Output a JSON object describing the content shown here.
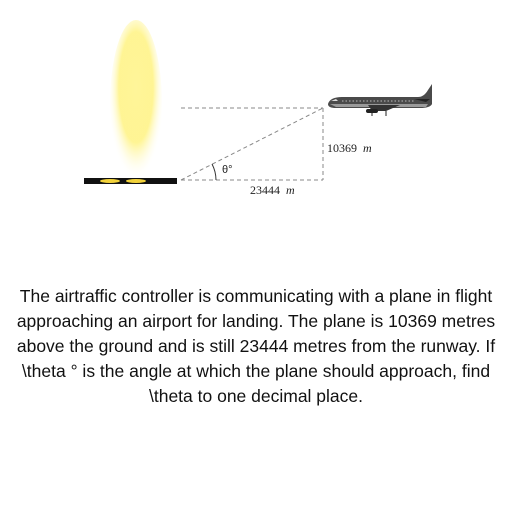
{
  "diagram": {
    "height_label": "10369",
    "distance_label": "23444",
    "unit": "m",
    "angle_label": "θ°"
  },
  "question": {
    "text": "The airtraffic controller is communicating with a plane in flight approaching an airport for landing. The plane is 10369 metres above the ground and is still 23444 metres from the runway. If \\theta ° is the angle at which the plane should approach, find \\theta  to one decimal place."
  },
  "colors": {
    "light_beam": "#fff07a",
    "runway": "#111111",
    "runway_lights": "#f2d23a",
    "dashed_line": "#888888",
    "plane_body": "#4a4a4a"
  }
}
